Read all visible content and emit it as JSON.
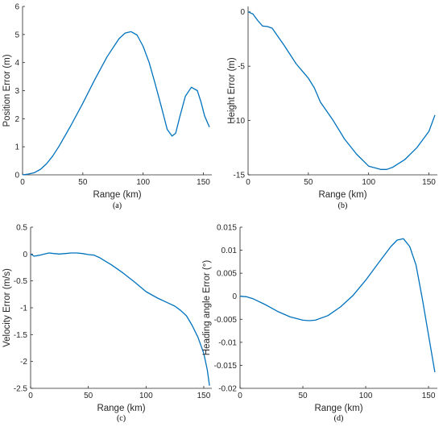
{
  "colors": {
    "series": "#0072BD",
    "axis": "#262626"
  },
  "chart_data": [
    {
      "id": "a",
      "type": "line",
      "caption": "(a)",
      "xlabel": "Range (km)",
      "ylabel": "Position Error (m)",
      "xlim": [
        0,
        157
      ],
      "ylim": [
        0,
        6
      ],
      "xticks": [
        0,
        50,
        100,
        150
      ],
      "yticks": [
        0,
        1,
        2,
        3,
        4,
        5,
        6
      ],
      "x": [
        0,
        5,
        10,
        15,
        20,
        25,
        30,
        40,
        50,
        60,
        70,
        80,
        85,
        90,
        95,
        100,
        105,
        110,
        115,
        120,
        124,
        127,
        130,
        135,
        140,
        145,
        148,
        151,
        155
      ],
      "y": [
        0,
        0.03,
        0.08,
        0.2,
        0.4,
        0.67,
        1.0,
        1.75,
        2.55,
        3.4,
        4.2,
        4.85,
        5.05,
        5.1,
        4.98,
        4.58,
        4.0,
        3.25,
        2.45,
        1.62,
        1.38,
        1.48,
        2.0,
        2.8,
        3.12,
        3.0,
        2.6,
        2.1,
        1.7
      ]
    },
    {
      "id": "b",
      "type": "line",
      "caption": "(b)",
      "xlabel": "Range (km)",
      "ylabel": "Height Error (m)",
      "xlim": [
        0,
        157
      ],
      "ylim": [
        -15,
        0.5
      ],
      "xticks": [
        0,
        50,
        100,
        150
      ],
      "yticks": [
        0,
        -5,
        -10,
        -15
      ],
      "x": [
        0,
        4,
        8,
        12,
        16,
        20,
        25,
        30,
        40,
        50,
        55,
        60,
        70,
        80,
        90,
        100,
        110,
        115,
        120,
        130,
        140,
        150,
        155
      ],
      "y": [
        0,
        -0.2,
        -0.8,
        -1.3,
        -1.35,
        -1.5,
        -2.3,
        -3.1,
        -4.8,
        -6.1,
        -7.0,
        -8.3,
        -9.9,
        -11.7,
        -13.1,
        -14.2,
        -14.5,
        -14.5,
        -14.3,
        -13.6,
        -12.5,
        -11.0,
        -9.5
      ]
    },
    {
      "id": "c",
      "type": "line",
      "caption": "(c)",
      "xlabel": "Range (km)",
      "ylabel": "Velocity Error (m/s)",
      "xlim": [
        0,
        157
      ],
      "ylim": [
        -2.5,
        0.5
      ],
      "xticks": [
        0,
        50,
        100,
        150
      ],
      "yticks": [
        0.5,
        0,
        -0.5,
        -1,
        -1.5,
        -2,
        -2.5
      ],
      "x": [
        0,
        3,
        8,
        12,
        16,
        20,
        25,
        30,
        35,
        40,
        45,
        50,
        55,
        60,
        70,
        80,
        90,
        100,
        110,
        120,
        125,
        130,
        135,
        140,
        145,
        150,
        153,
        155
      ],
      "y": [
        0.0,
        -0.04,
        -0.02,
        0.0,
        0.02,
        0.01,
        0.0,
        0.01,
        0.02,
        0.02,
        0.01,
        -0.01,
        -0.02,
        -0.07,
        -0.2,
        -0.35,
        -0.52,
        -0.7,
        -0.82,
        -0.92,
        -0.97,
        -1.05,
        -1.15,
        -1.33,
        -1.55,
        -1.85,
        -2.15,
        -2.45
      ]
    },
    {
      "id": "d",
      "type": "line",
      "caption": "(d)",
      "xlabel": "Range (km)",
      "ylabel": "Heading angle Error (°)",
      "xlim": [
        0,
        157
      ],
      "ylim": [
        -0.02,
        0.015
      ],
      "xticks": [
        0,
        50,
        100,
        150
      ],
      "yticks": [
        0.015,
        0.01,
        0.005,
        0,
        -0.005,
        -0.01,
        -0.015,
        -0.02
      ],
      "x": [
        0,
        5,
        10,
        20,
        30,
        40,
        50,
        55,
        60,
        70,
        80,
        90,
        100,
        110,
        120,
        125,
        130,
        135,
        140,
        145,
        150,
        155
      ],
      "y": [
        0,
        -0.0001,
        -0.0005,
        -0.0018,
        -0.0033,
        -0.0045,
        -0.0052,
        -0.0053,
        -0.0052,
        -0.0042,
        -0.0023,
        0.0002,
        0.0035,
        0.0072,
        0.0108,
        0.0122,
        0.0125,
        0.0108,
        0.0068,
        -0.0005,
        -0.0085,
        -0.0165
      ]
    }
  ]
}
